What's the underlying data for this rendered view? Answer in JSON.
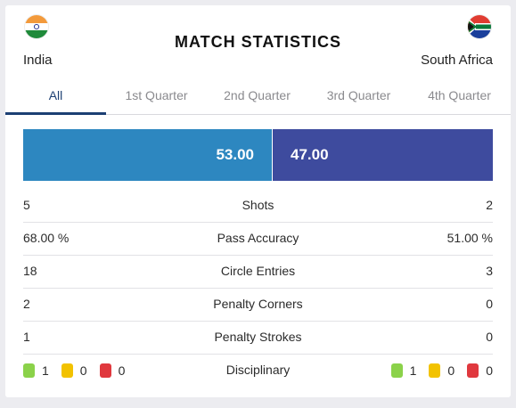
{
  "title": "MATCH STATISTICS",
  "teams": {
    "home": {
      "name": "India",
      "flag": "india-flag"
    },
    "away": {
      "name": "South Africa",
      "flag": "south-africa-flag"
    }
  },
  "tabs": [
    {
      "label": "All",
      "active": true
    },
    {
      "label": "1st Quarter",
      "active": false
    },
    {
      "label": "2nd Quarter",
      "active": false
    },
    {
      "label": "3rd Quarter",
      "active": false
    },
    {
      "label": "4th Quarter",
      "active": false
    }
  ],
  "possession": {
    "home": "53.00",
    "away": "47.00",
    "home_fraction": 0.53
  },
  "stats": [
    {
      "label": "Shots",
      "home": "5",
      "away": "2"
    },
    {
      "label": "Pass Accuracy",
      "home": "68.00 %",
      "away": "51.00 %"
    },
    {
      "label": "Circle Entries",
      "home": "18",
      "away": "3"
    },
    {
      "label": "Penalty Corners",
      "home": "2",
      "away": "0"
    },
    {
      "label": "Penalty Strokes",
      "home": "1",
      "away": "0"
    }
  ],
  "disciplinary": {
    "label": "Disciplinary",
    "home": {
      "green": "1",
      "yellow": "0",
      "red": "0"
    },
    "away": {
      "green": "1",
      "yellow": "0",
      "red": "0"
    }
  },
  "colors": {
    "home_bar": "#2d87c0",
    "away_bar": "#3e4b9e",
    "active_tab": "#1c3f73",
    "green_card": "#8bd24a",
    "yellow_card": "#f2c200",
    "red_card": "#e0383e"
  }
}
